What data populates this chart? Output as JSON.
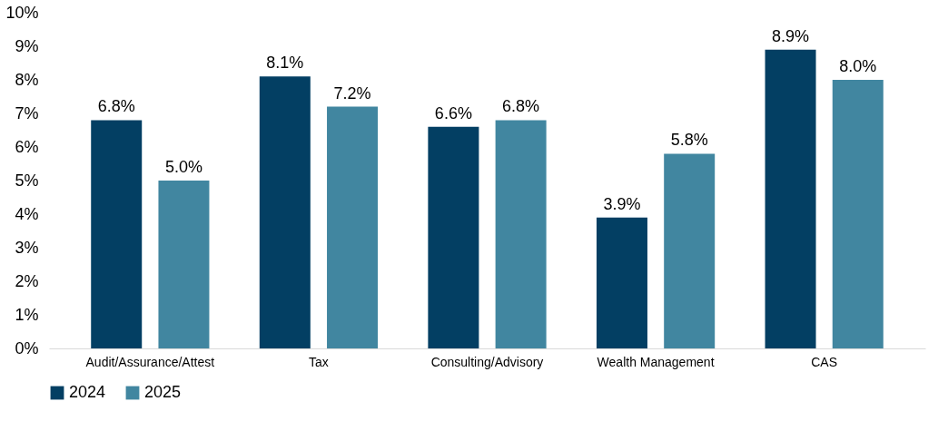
{
  "chart_data": {
    "type": "bar",
    "categories": [
      "Audit/Assurance/Attest",
      "Tax",
      "Consulting/Advisory",
      "Wealth Management",
      "CAS"
    ],
    "series": [
      {
        "name": "2024",
        "color": "#033f63",
        "values": [
          6.8,
          8.1,
          6.6,
          3.9,
          8.9
        ],
        "value_labels": [
          "6.8%",
          "8.1%",
          "6.6%",
          "3.9%",
          "8.9%"
        ]
      },
      {
        "name": "2025",
        "color": "#4186a0",
        "values": [
          5.0,
          7.2,
          6.8,
          5.8,
          8.0
        ],
        "value_labels": [
          "5.0%",
          "7.2%",
          "6.8%",
          "5.8%",
          "8.0%"
        ]
      }
    ],
    "ylim": [
      0,
      10
    ],
    "yticks": [
      {
        "value": 0,
        "label": "0%"
      },
      {
        "value": 1,
        "label": "1%"
      },
      {
        "value": 2,
        "label": "2%"
      },
      {
        "value": 3,
        "label": "3%"
      },
      {
        "value": 4,
        "label": "4%"
      },
      {
        "value": 5,
        "label": "5%"
      },
      {
        "value": 6,
        "label": "6%"
      },
      {
        "value": 7,
        "label": "7%"
      },
      {
        "value": 8,
        "label": "8%"
      },
      {
        "value": 9,
        "label": "9%"
      },
      {
        "value": 10,
        "label": "10%"
      }
    ],
    "grid": false,
    "legend": "bottom"
  }
}
